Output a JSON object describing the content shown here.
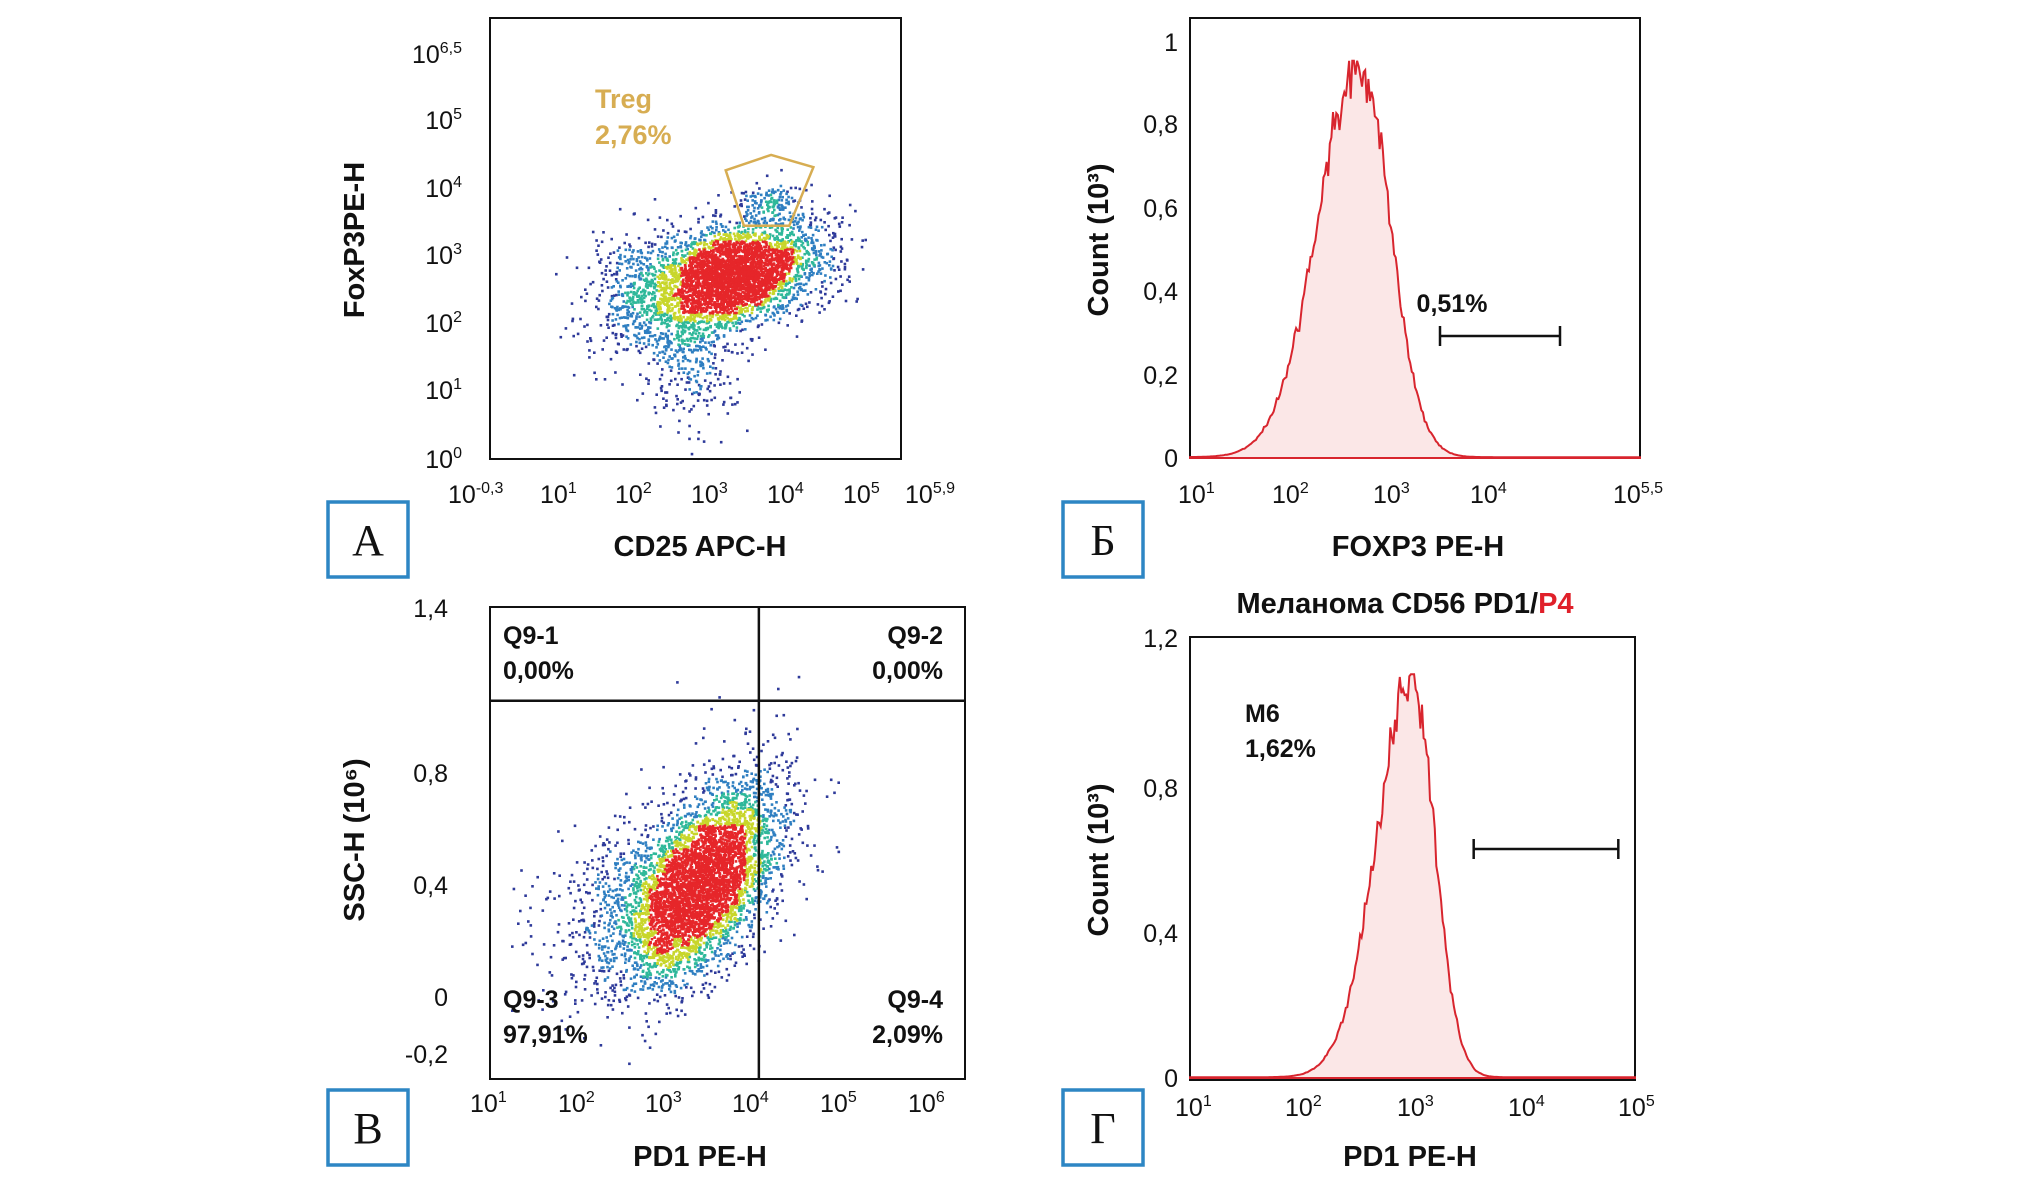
{
  "colors": {
    "density_low": "#2e3a9a",
    "density_mid_low": "#2f7fc1",
    "density_mid": "#2fb89a",
    "density_mid_high": "#c8d62b",
    "density_high": "#e6262a",
    "gate_treg": "#d7ad52",
    "histogram_line": "#d8252e",
    "histogram_fill": "#fbe7e7",
    "title_accent": "#e0202a",
    "panel_box": "#2d86c4"
  },
  "chart_data": [
    {
      "panel": "А",
      "type": "scatter",
      "xlabel": "CD25 APC-H",
      "ylabel": "FoxP3PE-H",
      "x_ticks": [
        {
          "base": "10",
          "exp": "-0,3",
          "value": -0.3
        },
        {
          "base": "10",
          "exp": "1",
          "value": 1
        },
        {
          "base": "10",
          "exp": "2",
          "value": 2
        },
        {
          "base": "10",
          "exp": "3",
          "value": 3
        },
        {
          "base": "10",
          "exp": "4",
          "value": 4
        },
        {
          "base": "10",
          "exp": "5",
          "value": 5
        },
        {
          "base": "10",
          "exp": "5,9",
          "value": 5.9
        }
      ],
      "y_ticks": [
        {
          "base": "10",
          "exp": "0",
          "value": 0
        },
        {
          "base": "10",
          "exp": "1",
          "value": 1
        },
        {
          "base": "10",
          "exp": "2",
          "value": 2
        },
        {
          "base": "10",
          "exp": "3",
          "value": 3
        },
        {
          "base": "10",
          "exp": "4",
          "value": 4
        },
        {
          "base": "10",
          "exp": "5",
          "value": 5
        },
        {
          "base": "10",
          "exp": "6,5",
          "value": 6.5
        }
      ],
      "xlim_log10": [
        -0.9,
        5.9
      ],
      "ylim_log10": [
        0,
        6.5
      ],
      "x_scale": "log",
      "y_scale": "log",
      "populations": [
        {
          "cx": 2.9,
          "cy": 2.8,
          "sx": 0.62,
          "sy": 0.42,
          "rho": 0.25,
          "n": 2600
        },
        {
          "cx": 3.35,
          "cy": 2.95,
          "sx": 0.45,
          "sy": 0.32,
          "rho": 0.2,
          "n": 900
        },
        {
          "cx": 1.6,
          "cy": 2.6,
          "sx": 0.5,
          "sy": 0.5,
          "rho": 0.1,
          "n": 450
        },
        {
          "cx": 2.4,
          "cy": 1.6,
          "sx": 0.4,
          "sy": 0.6,
          "rho": 0.0,
          "n": 350
        },
        {
          "cx": 4.2,
          "cy": 3.2,
          "sx": 0.45,
          "sy": 0.45,
          "rho": 0.1,
          "n": 350
        },
        {
          "cx": 3.7,
          "cy": 4.05,
          "sx": 0.25,
          "sy": 0.15,
          "rho": 0.0,
          "n": 120
        }
      ],
      "gate": {
        "label": "Treg",
        "percent": "2,76%",
        "polygon_log10": [
          [
            3.0,
            4.55
          ],
          [
            3.75,
            4.8
          ],
          [
            4.45,
            4.6
          ],
          [
            4.05,
            3.65
          ],
          [
            3.3,
            3.65
          ]
        ]
      }
    },
    {
      "panel": "Б",
      "type": "area",
      "xlabel": "FOXP3 PE-H",
      "ylabel": "Count (10³)",
      "x_ticks": [
        {
          "base": "10",
          "exp": "1",
          "value": 1
        },
        {
          "base": "10",
          "exp": "2",
          "value": 2
        },
        {
          "base": "10",
          "exp": "3",
          "value": 3
        },
        {
          "base": "10",
          "exp": "4",
          "value": 4
        },
        {
          "base": "10",
          "exp": "5,5",
          "value": 5.5
        }
      ],
      "y_ticks": [
        "0",
        "0,2",
        "0,4",
        "0,6",
        "0,8",
        "1"
      ],
      "xlim_log10": [
        1,
        5.5
      ],
      "ylim": [
        0,
        1
      ],
      "x_scale": "log",
      "histogram": {
        "peak_x_log10": 2.7,
        "peak": 0.95,
        "sigma_left": 0.42,
        "sigma_right": 0.3
      },
      "marker": {
        "label": "0,51%",
        "x_range_log10": [
          3.5,
          4.7
        ]
      }
    },
    {
      "panel": "В",
      "type": "scatter",
      "xlabel": "PD1 PE-H",
      "ylabel": "SSC-H (10⁶)",
      "x_ticks": [
        {
          "base": "10",
          "exp": "1",
          "value": 1
        },
        {
          "base": "10",
          "exp": "2",
          "value": 2
        },
        {
          "base": "10",
          "exp": "3",
          "value": 3
        },
        {
          "base": "10",
          "exp": "4",
          "value": 4
        },
        {
          "base": "10",
          "exp": "5",
          "value": 5
        },
        {
          "base": "10",
          "exp": "6",
          "value": 6
        }
      ],
      "y_ticks": [
        "-0,2",
        "0",
        "0,4",
        "0,8",
        "1,4"
      ],
      "y_tick_values": [
        -0.2,
        0,
        0.4,
        0.8,
        1.4
      ],
      "xlim_log10": [
        1,
        6.3
      ],
      "ylim": [
        -0.2,
        1.4
      ],
      "x_scale": "log",
      "quadrant_divider": {
        "x_log10": 4.0,
        "y": 1.07
      },
      "populations": [
        {
          "cx": 3.3,
          "cy": 0.4,
          "sx": 0.42,
          "sy": 0.17,
          "rho": 0.55,
          "n": 4200
        },
        {
          "cx": 2.6,
          "cy": 0.35,
          "sx": 0.55,
          "sy": 0.18,
          "rho": 0.4,
          "n": 700
        },
        {
          "cx": 3.8,
          "cy": 0.6,
          "sx": 0.35,
          "sy": 0.2,
          "rho": 0.3,
          "n": 350
        }
      ],
      "quadrants": [
        {
          "id": "Q9-1",
          "percent": "0,00%",
          "position": "top-left"
        },
        {
          "id": "Q9-2",
          "percent": "0,00%",
          "position": "top-right"
        },
        {
          "id": "Q9-3",
          "percent": "97,91%",
          "position": "bottom-left"
        },
        {
          "id": "Q9-4",
          "percent": "2,09%",
          "position": "bottom-right"
        }
      ]
    },
    {
      "panel": "Г",
      "type": "area",
      "title_main": "Меланома CD56 PD1/",
      "title_accent": "P4",
      "xlabel": "PD1 PE-H",
      "ylabel": "Count (10³)",
      "x_ticks": [
        {
          "base": "10",
          "exp": "1",
          "value": 1
        },
        {
          "base": "10",
          "exp": "2",
          "value": 2
        },
        {
          "base": "10",
          "exp": "3",
          "value": 3
        },
        {
          "base": "10",
          "exp": "4",
          "value": 4
        },
        {
          "base": "10",
          "exp": "5",
          "value": 5
        }
      ],
      "y_ticks": [
        "0",
        "0,4",
        "0,8",
        "1,2"
      ],
      "xlim_log10": [
        1,
        5
      ],
      "ylim": [
        0,
        1.2
      ],
      "x_scale": "log",
      "histogram": {
        "peak_x_log10": 3.0,
        "peak": 1.09,
        "sigma_left": 0.32,
        "sigma_right": 0.2
      },
      "marker": {
        "label": "M6",
        "percent": "1,62%",
        "x_range_log10": [
          3.55,
          4.85
        ]
      }
    }
  ]
}
